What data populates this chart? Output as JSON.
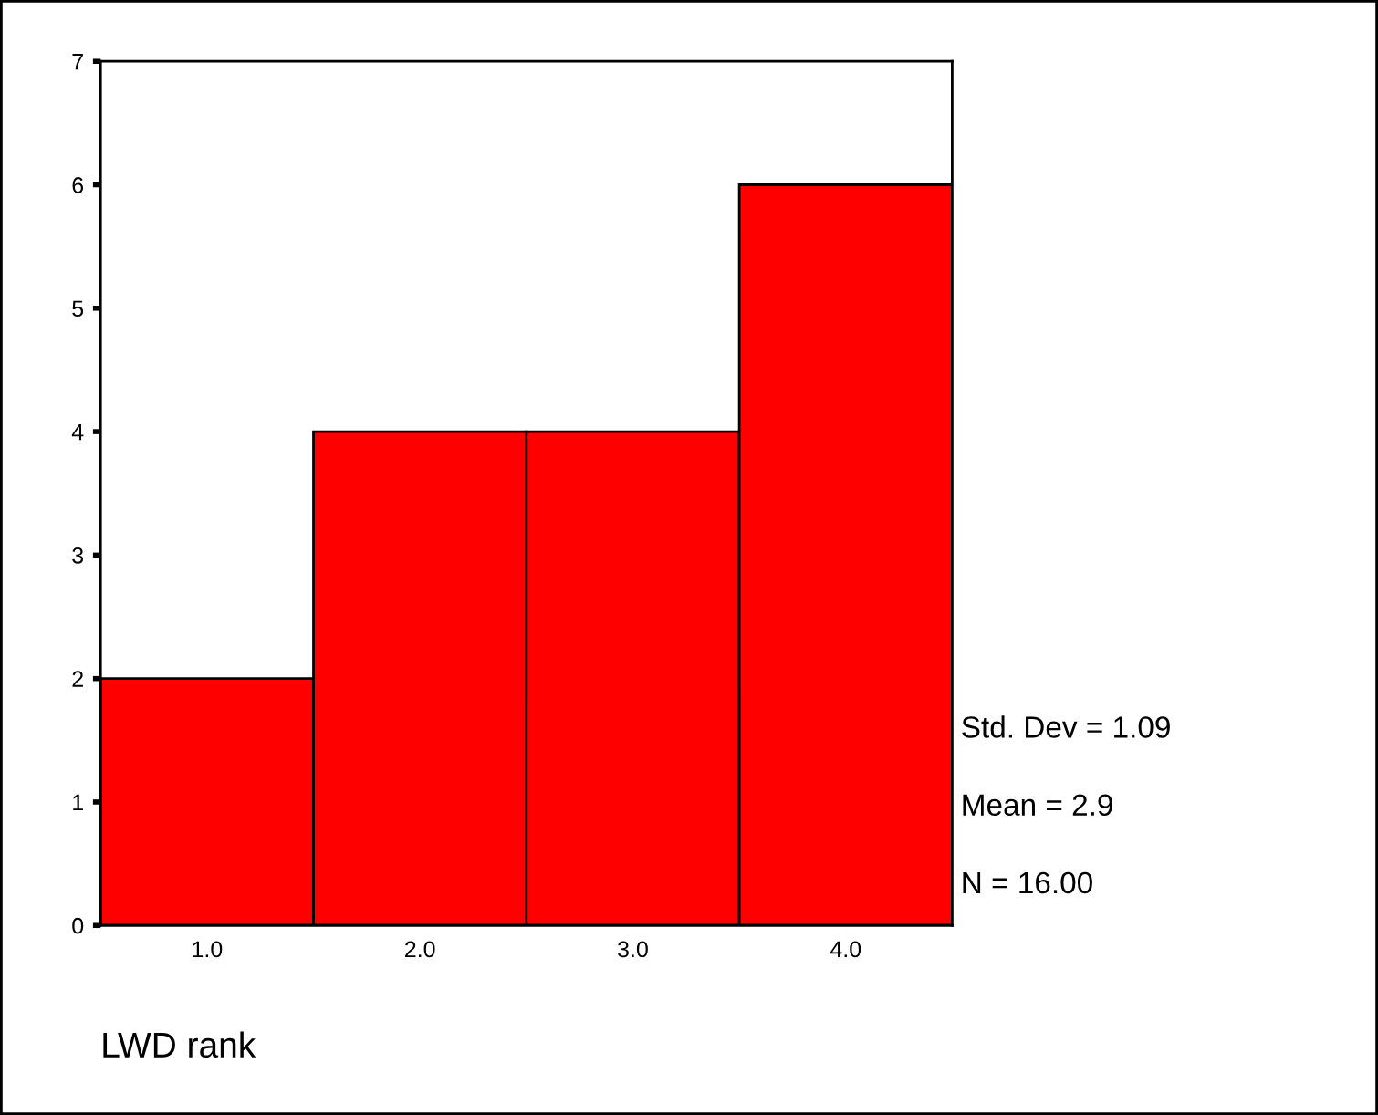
{
  "chart_data": {
    "type": "histogram",
    "xlabel": "LWD rank",
    "bins": [
      0.5,
      1.5,
      2.5,
      3.5,
      4.5
    ],
    "values": [
      2,
      4,
      4,
      6
    ],
    "color": "#ff0000",
    "xlim": [
      0.5,
      4.5
    ],
    "xticks": [
      {
        "value": 1,
        "label": "1.0"
      },
      {
        "value": 2,
        "label": "2.0"
      },
      {
        "value": 3,
        "label": "3.0"
      },
      {
        "value": 4,
        "label": "4.0"
      }
    ],
    "ylim": [
      0,
      7
    ],
    "yticks": [
      0,
      1,
      2,
      3,
      4,
      5,
      6,
      7
    ],
    "grid": false,
    "annotations": [
      "Std. Dev = 1.09",
      "Mean = 2.9",
      "N = 16.00"
    ]
  }
}
